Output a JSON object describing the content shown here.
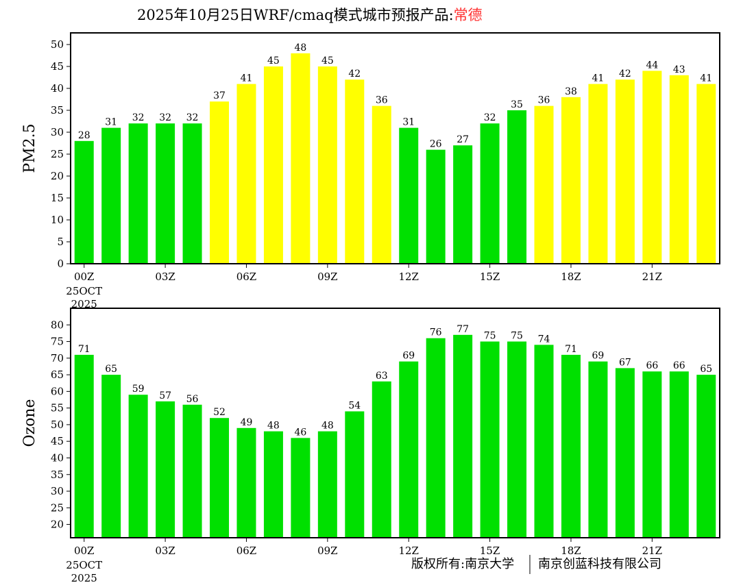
{
  "title": {
    "prefix": "2025年10月25日WRF/cmaq模式城市预报产品:",
    "city": "常德",
    "city_color": "#ff3333"
  },
  "footer": {
    "copyright": "版权所有:南京大学",
    "company": "南京创蓝科技有限公司"
  },
  "colors": {
    "good": "#00e000",
    "moderate": "#ffff00"
  },
  "chart_data": [
    {
      "type": "bar",
      "ylabel": "PM2.5",
      "ylim": [
        0,
        50
      ],
      "yticks": [
        0,
        5,
        10,
        15,
        20,
        25,
        30,
        35,
        40,
        45,
        50
      ],
      "threshold_moderate_above": 35,
      "xticks": [
        {
          "index": 0,
          "label": "00Z"
        },
        {
          "index": 3,
          "label": "03Z"
        },
        {
          "index": 6,
          "label": "06Z"
        },
        {
          "index": 9,
          "label": "09Z"
        },
        {
          "index": 12,
          "label": "12Z"
        },
        {
          "index": 15,
          "label": "15Z"
        },
        {
          "index": 18,
          "label": "18Z"
        },
        {
          "index": 21,
          "label": "21Z"
        }
      ],
      "date_label": [
        "25OCT",
        "2025"
      ],
      "values": [
        28,
        31,
        32,
        32,
        32,
        37,
        41,
        45,
        48,
        45,
        42,
        36,
        31,
        26,
        27,
        32,
        35,
        36,
        38,
        41,
        42,
        44,
        43,
        41
      ]
    },
    {
      "type": "bar",
      "ylabel": "Ozone",
      "ylim": [
        16,
        85
      ],
      "yticks": [
        20,
        25,
        30,
        35,
        40,
        45,
        50,
        55,
        60,
        65,
        70,
        75,
        80
      ],
      "threshold_moderate_above": 1000,
      "xticks": [
        {
          "index": 0,
          "label": "00Z"
        },
        {
          "index": 3,
          "label": "03Z"
        },
        {
          "index": 6,
          "label": "06Z"
        },
        {
          "index": 9,
          "label": "09Z"
        },
        {
          "index": 12,
          "label": "12Z"
        },
        {
          "index": 15,
          "label": "15Z"
        },
        {
          "index": 18,
          "label": "18Z"
        },
        {
          "index": 21,
          "label": "21Z"
        }
      ],
      "date_label": [
        "25OCT",
        "2025"
      ],
      "values": [
        71,
        65,
        59,
        57,
        56,
        52,
        49,
        48,
        46,
        48,
        54,
        63,
        69,
        76,
        77,
        75,
        75,
        74,
        71,
        69,
        67,
        66,
        66,
        65
      ]
    }
  ]
}
